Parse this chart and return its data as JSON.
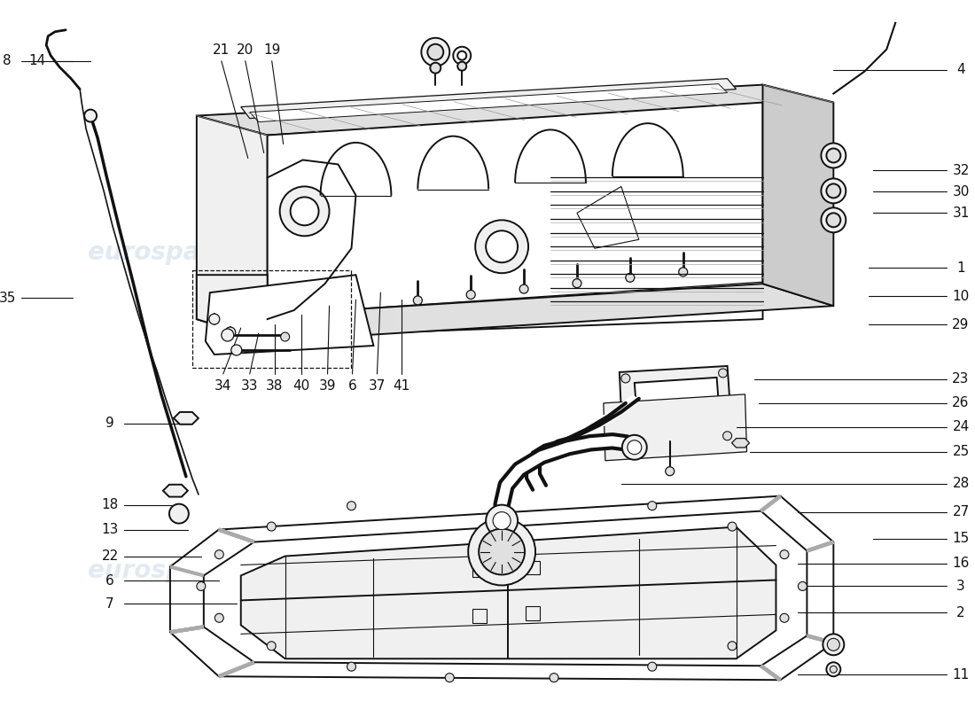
{
  "background_color": "#ffffff",
  "line_color": "#111111",
  "fill_white": "#ffffff",
  "fill_light": "#f0f0f0",
  "fill_med": "#e0e0e0",
  "fill_dark": "#cccccc",
  "watermark_color": "#d0dde8",
  "label_fontsize": 11,
  "lw_main": 1.4,
  "lw_thin": 0.8,
  "right_labels": [
    [
      "4",
      940,
      78,
      1068,
      78
    ],
    [
      "32",
      985,
      192,
      1068,
      192
    ],
    [
      "30",
      985,
      216,
      1068,
      216
    ],
    [
      "31",
      985,
      240,
      1068,
      240
    ],
    [
      "1",
      980,
      302,
      1068,
      302
    ],
    [
      "10",
      980,
      334,
      1068,
      334
    ],
    [
      "29",
      980,
      366,
      1068,
      366
    ],
    [
      "23",
      850,
      428,
      1068,
      428
    ],
    [
      "26",
      855,
      455,
      1068,
      455
    ],
    [
      "24",
      830,
      482,
      1068,
      482
    ],
    [
      "25",
      845,
      510,
      1068,
      510
    ],
    [
      "28",
      700,
      546,
      1068,
      546
    ],
    [
      "27",
      900,
      578,
      1068,
      578
    ],
    [
      "15",
      985,
      608,
      1068,
      608
    ],
    [
      "16",
      900,
      636,
      1068,
      636
    ],
    [
      "3",
      900,
      662,
      1068,
      662
    ],
    [
      "2",
      900,
      692,
      1068,
      692
    ],
    [
      "11",
      900,
      762,
      1068,
      762
    ]
  ],
  "left_labels": [
    [
      "8",
      80,
      68,
      22,
      68
    ],
    [
      "14",
      100,
      68,
      56,
      68
    ],
    [
      "35",
      80,
      336,
      22,
      336
    ],
    [
      "9",
      212,
      478,
      138,
      478
    ],
    [
      "18",
      205,
      570,
      138,
      570
    ],
    [
      "13",
      210,
      598,
      138,
      598
    ],
    [
      "22",
      225,
      628,
      138,
      628
    ],
    [
      "6",
      245,
      656,
      138,
      656
    ],
    [
      "7",
      265,
      682,
      138,
      682
    ]
  ],
  "top_labels": [
    [
      "21",
      278,
      178,
      248,
      68
    ],
    [
      "20",
      296,
      172,
      275,
      68
    ],
    [
      "19",
      318,
      162,
      305,
      68
    ]
  ],
  "bottom_labels": [
    [
      "34",
      270,
      370,
      250,
      422
    ],
    [
      "33",
      290,
      376,
      280,
      422
    ],
    [
      "38",
      308,
      366,
      308,
      422
    ],
    [
      "40",
      338,
      355,
      338,
      422
    ],
    [
      "39",
      370,
      345,
      368,
      422
    ],
    [
      "6",
      400,
      338,
      396,
      422
    ],
    [
      "37",
      428,
      330,
      424,
      422
    ],
    [
      "41",
      452,
      338,
      452,
      422
    ]
  ]
}
